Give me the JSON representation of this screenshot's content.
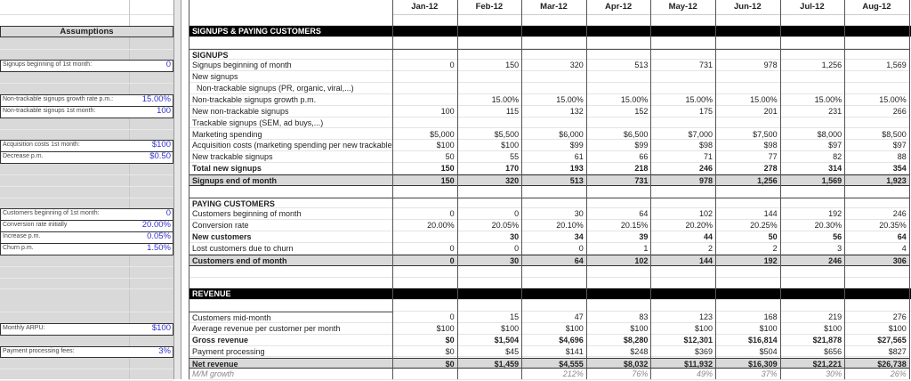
{
  "months": [
    "Jan-12",
    "Feb-12",
    "Mar-12",
    "Apr-12",
    "May-12",
    "Jun-12",
    "Jul-12",
    "Aug-12"
  ],
  "assumptions_title": "Assumptions",
  "colors": {
    "input_blue": "#3333cc",
    "panel_gray": "#d9d9d9",
    "section_black": "#000000",
    "total_gray": "#d9d9d9"
  },
  "rows": [
    {
      "type": "blank"
    },
    {
      "type": "section",
      "label": "SIGNUPS & PAYING CUSTOMERS"
    },
    {
      "type": "blank"
    },
    {
      "type": "normal",
      "bold": true,
      "label": "SIGNUPS",
      "values": [
        "",
        "",
        "",
        "",
        "",
        "",
        "",
        ""
      ]
    },
    {
      "type": "normal",
      "label": "Signups beginning of month",
      "values": [
        "0",
        "150",
        "320",
        "513",
        "731",
        "978",
        "1,256",
        "1,569"
      ],
      "assumption": {
        "label": "Signups beginning of 1st month:",
        "value": "0"
      }
    },
    {
      "type": "normal",
      "label": "New signups",
      "values": [
        "",
        "",
        "",
        "",
        "",
        "",
        "",
        ""
      ]
    },
    {
      "type": "normal",
      "label": "  Non-trackable signups (PR, organic, viral,...)",
      "values": [
        "",
        "",
        "",
        "",
        "",
        "",
        "",
        ""
      ]
    },
    {
      "type": "normal",
      "label": "Non-trackable signups growth p.m.",
      "values": [
        "",
        "15.00%",
        "15.00%",
        "15.00%",
        "15.00%",
        "15.00%",
        "15.00%",
        "15.00%"
      ],
      "assumption": {
        "label": "Non-trackable signups growth rate p.m.:",
        "value": "15.00%"
      }
    },
    {
      "type": "normal",
      "label": "New non-trackable signups",
      "values": [
        "100",
        "115",
        "132",
        "152",
        "175",
        "201",
        "231",
        "266"
      ],
      "assumption": {
        "label": "Non-trackable signups 1st month:",
        "value": "100"
      }
    },
    {
      "type": "normal",
      "label": "Trackable signups (SEM, ad buys,...)",
      "values": [
        "",
        "",
        "",
        "",
        "",
        "",
        "",
        ""
      ]
    },
    {
      "type": "normal",
      "label": "Marketing spending",
      "values": [
        "$5,000",
        "$5,500",
        "$6,000",
        "$6,500",
        "$7,000",
        "$7,500",
        "$8,000",
        "$8,500"
      ]
    },
    {
      "type": "normal",
      "label": "Acquisition costs (marketing spending per new trackable signup)",
      "values": [
        "$100",
        "$100",
        "$99",
        "$99",
        "$98",
        "$98",
        "$97",
        "$97"
      ],
      "assumption": {
        "label": "Acquisition costs 1st month:",
        "value": "$100"
      }
    },
    {
      "type": "normal",
      "label": "New trackable signups",
      "values": [
        "50",
        "55",
        "61",
        "66",
        "71",
        "77",
        "82",
        "88"
      ],
      "assumption": {
        "label": "Decrease p.m.",
        "value": "$0.50"
      }
    },
    {
      "type": "normal",
      "bold": true,
      "label": "Total new signups",
      "values": [
        "150",
        "170",
        "193",
        "218",
        "246",
        "278",
        "314",
        "354"
      ]
    },
    {
      "type": "total",
      "bold": true,
      "label": "Signups end of month",
      "values": [
        "150",
        "320",
        "513",
        "731",
        "978",
        "1,256",
        "1,569",
        "1,923"
      ]
    },
    {
      "type": "blank"
    },
    {
      "type": "normal",
      "bold": true,
      "label": "PAYING CUSTOMERS",
      "values": [
        "",
        "",
        "",
        "",
        "",
        "",
        "",
        ""
      ]
    },
    {
      "type": "normal",
      "label": "Customers beginning of month",
      "values": [
        "0",
        "0",
        "30",
        "64",
        "102",
        "144",
        "192",
        "246"
      ],
      "assumption": {
        "label": "Customers beginning of 1st month:",
        "value": "0"
      }
    },
    {
      "type": "normal",
      "label": "Conversion rate",
      "values": [
        "20.00%",
        "20.05%",
        "20.10%",
        "20.15%",
        "20.20%",
        "20.25%",
        "20.30%",
        "20.35%"
      ],
      "assumption": {
        "label": "Conversion rate initially",
        "value": "20.00%"
      }
    },
    {
      "type": "normal",
      "bold": true,
      "label": "New customers",
      "values": [
        "",
        "30",
        "34",
        "39",
        "44",
        "50",
        "56",
        "64"
      ],
      "assumption": {
        "label": "Increase p.m.",
        "value": "0.05%"
      }
    },
    {
      "type": "normal",
      "label": "Lost customers due to churn",
      "values": [
        "0",
        "0",
        "0",
        "1",
        "2",
        "2",
        "3",
        "4"
      ],
      "assumption": {
        "label": "Churn p.m.",
        "value": "1.50%"
      }
    },
    {
      "type": "total",
      "bold": true,
      "label": "Customers end of month",
      "values": [
        "0",
        "30",
        "64",
        "102",
        "144",
        "192",
        "246",
        "306"
      ]
    },
    {
      "type": "blank"
    },
    {
      "type": "blank"
    },
    {
      "type": "section",
      "label": "REVENUE"
    },
    {
      "type": "blank"
    },
    {
      "type": "normal",
      "label": "Customers mid-month",
      "values": [
        "0",
        "15",
        "47",
        "83",
        "123",
        "168",
        "219",
        "276"
      ]
    },
    {
      "type": "normal",
      "label": "Average revenue per customer per month",
      "values": [
        "$100",
        "$100",
        "$100",
        "$100",
        "$100",
        "$100",
        "$100",
        "$100"
      ],
      "assumption": {
        "label": "Monthly ARPU:",
        "value": "$100"
      }
    },
    {
      "type": "normal",
      "bold": true,
      "label": "Gross revenue",
      "values": [
        "$0",
        "$1,504",
        "$4,696",
        "$8,280",
        "$12,301",
        "$16,814",
        "$21,878",
        "$27,565"
      ]
    },
    {
      "type": "normal",
      "label": "Payment processing",
      "values": [
        "$0",
        "$45",
        "$141",
        "$248",
        "$369",
        "$504",
        "$656",
        "$827"
      ],
      "assumption": {
        "label": "Payment processing fees:",
        "value": "3%"
      }
    },
    {
      "type": "total",
      "bold": true,
      "label": "Net revenue",
      "values": [
        "$0",
        "$1,459",
        "$4,555",
        "$8,032",
        "$11,932",
        "$16,309",
        "$21,221",
        "$26,738"
      ]
    },
    {
      "type": "italic",
      "label": "M/M growth",
      "values": [
        "",
        "",
        "212%",
        "76%",
        "49%",
        "37%",
        "30%",
        "26%"
      ]
    }
  ]
}
